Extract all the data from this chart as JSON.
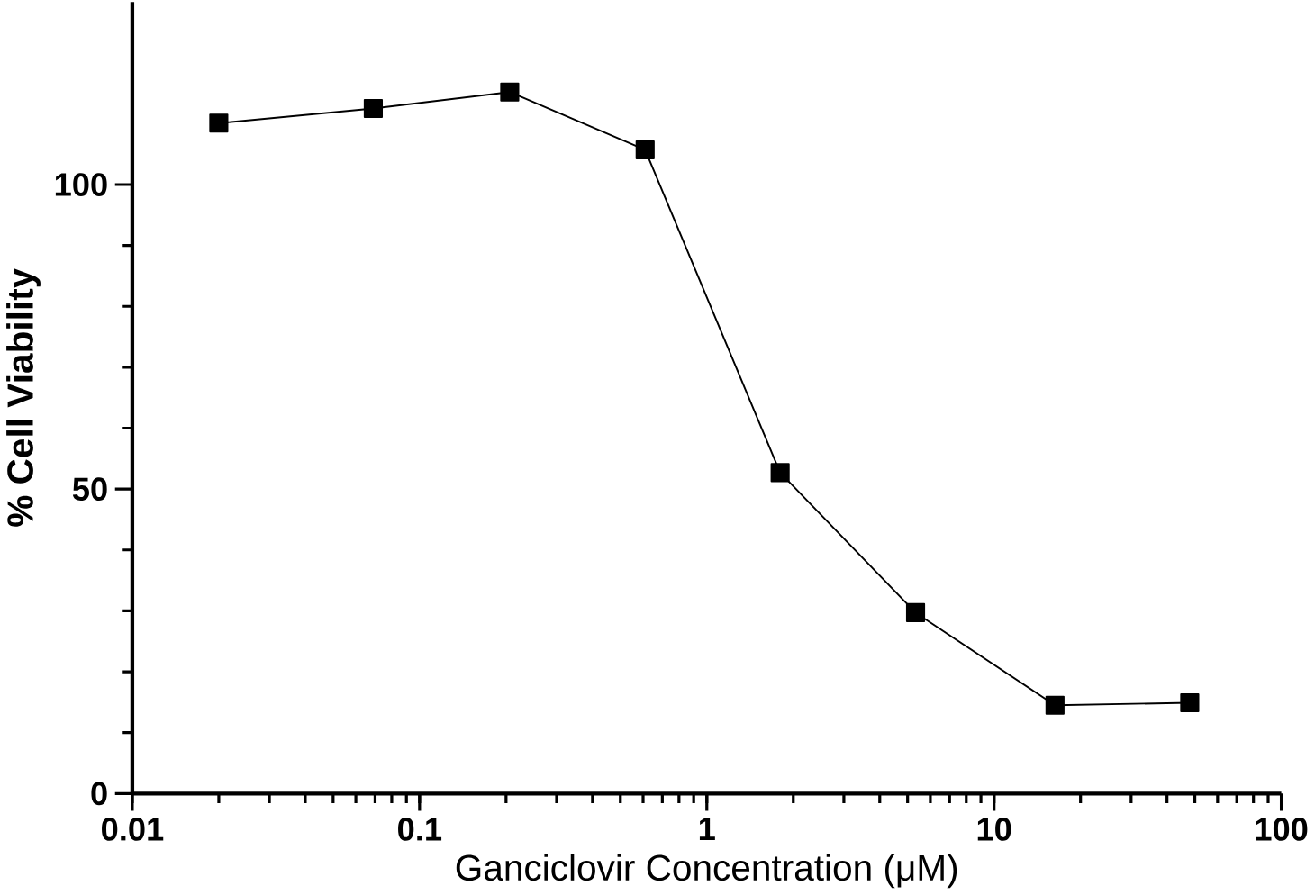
{
  "chart_data": {
    "type": "line",
    "xlabel": "Ganciclovir Concentration (μM)",
    "ylabel": "% Cell Viability",
    "x": [
      0.02,
      0.069,
      0.206,
      0.61,
      1.8,
      5.33,
      16.3,
      48
    ],
    "series": [
      {
        "color": "#000000",
        "values": [
          110.1,
          112.5,
          115.2,
          105.7,
          52.7,
          29.7,
          14.5,
          14.9
        ]
      }
    ],
    "log": "x",
    "xlim": [
      0.01,
      100
    ],
    "xticks": [
      0.01,
      0.1,
      1,
      10,
      100
    ],
    "ylim": [
      0,
      130
    ],
    "yticks": [
      0,
      50,
      100
    ],
    "marker": "square",
    "line_style": "solid"
  }
}
